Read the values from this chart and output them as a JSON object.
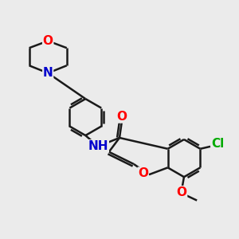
{
  "bg_color": "#ebebeb",
  "bond_color": "#1a1a1a",
  "bond_width": 1.8,
  "dbo": 0.12,
  "atom_colors": {
    "O": "#ff0000",
    "N": "#0000cc",
    "Cl": "#00aa00",
    "C": "#1a1a1a"
  },
  "fs": 11
}
